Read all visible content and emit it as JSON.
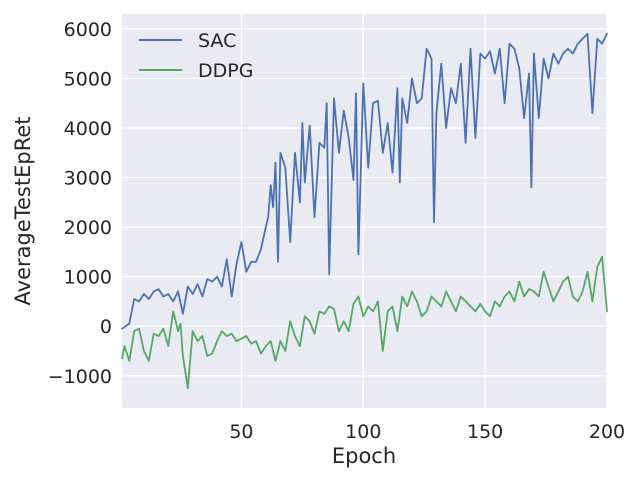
{
  "chart_data": {
    "type": "line",
    "title": "",
    "xlabel": "Epoch",
    "ylabel": "AverageTestEpRet",
    "xlim": [
      1,
      200
    ],
    "ylim": [
      -1650,
      6300
    ],
    "xticks": [
      50,
      100,
      150,
      200
    ],
    "xtick_labels": [
      "50",
      "100",
      "150",
      "200"
    ],
    "yticks": [
      -1000,
      0,
      1000,
      2000,
      3000,
      4000,
      5000,
      6000
    ],
    "ytick_labels": [
      "−1000",
      "0",
      "1000",
      "2000",
      "3000",
      "4000",
      "5000",
      "6000"
    ],
    "grid": true,
    "legend_position": "top-left",
    "background": "#EAEAF2",
    "series": [
      {
        "name": "SAC",
        "color": "#4C72B0",
        "x": [
          1,
          4,
          6,
          8,
          10,
          12,
          14,
          16,
          18,
          20,
          22,
          24,
          26,
          28,
          30,
          32,
          34,
          36,
          38,
          40,
          42,
          44,
          46,
          48,
          50,
          52,
          54,
          56,
          58,
          60,
          61,
          62,
          63,
          64,
          65,
          66,
          68,
          70,
          72,
          74,
          75,
          76,
          78,
          80,
          82,
          84,
          85,
          86,
          88,
          90,
          92,
          94,
          96,
          97,
          98,
          100,
          102,
          104,
          106,
          108,
          110,
          112,
          114,
          115,
          116,
          118,
          120,
          122,
          124,
          126,
          128,
          129,
          130,
          132,
          134,
          136,
          138,
          140,
          142,
          144,
          146,
          148,
          150,
          152,
          154,
          156,
          158,
          160,
          162,
          164,
          166,
          168,
          169,
          170,
          172,
          174,
          176,
          178,
          180,
          182,
          184,
          186,
          188,
          190,
          192,
          194,
          196,
          198,
          200
        ],
        "values": [
          -50,
          50,
          550,
          500,
          650,
          550,
          700,
          750,
          600,
          650,
          500,
          700,
          250,
          800,
          650,
          850,
          600,
          950,
          900,
          1000,
          800,
          1350,
          600,
          1250,
          1700,
          1100,
          1300,
          1300,
          1550,
          2000,
          2200,
          2850,
          2400,
          3300,
          1300,
          3500,
          3200,
          1700,
          3500,
          2500,
          4100,
          2900,
          4050,
          2200,
          3700,
          3600,
          4500,
          1050,
          4600,
          3500,
          4350,
          3800,
          2950,
          4700,
          1450,
          4900,
          3200,
          4500,
          4550,
          3500,
          4100,
          3100,
          4800,
          2900,
          4600,
          4100,
          5000,
          4500,
          4600,
          5600,
          5400,
          2100,
          4300,
          5300,
          4000,
          4800,
          4500,
          5300,
          3700,
          5600,
          3800,
          5500,
          5400,
          5550,
          5100,
          5600,
          4500,
          5700,
          5600,
          5200,
          4200,
          5100,
          2800,
          5500,
          4200,
          5400,
          5000,
          5500,
          5300,
          5500,
          5600,
          5500,
          5700,
          5800,
          5900,
          4300,
          5800,
          5700,
          5900
        ]
      },
      {
        "name": "DDPG",
        "color": "#55A868",
        "x": [
          1,
          2,
          3,
          4,
          6,
          8,
          10,
          12,
          14,
          16,
          18,
          20,
          22,
          24,
          25,
          26,
          28,
          30,
          32,
          34,
          36,
          38,
          40,
          42,
          44,
          46,
          48,
          50,
          52,
          54,
          56,
          58,
          60,
          62,
          64,
          66,
          68,
          70,
          72,
          74,
          76,
          78,
          80,
          82,
          84,
          86,
          88,
          90,
          92,
          94,
          96,
          98,
          100,
          102,
          104,
          106,
          108,
          110,
          112,
          114,
          116,
          118,
          120,
          122,
          124,
          126,
          128,
          130,
          132,
          134,
          136,
          138,
          140,
          142,
          144,
          146,
          148,
          150,
          152,
          154,
          156,
          158,
          160,
          162,
          164,
          166,
          168,
          170,
          172,
          174,
          176,
          178,
          180,
          182,
          184,
          186,
          188,
          190,
          192,
          194,
          196,
          198,
          200
        ],
        "values": [
          -650,
          -400,
          -550,
          -700,
          -100,
          -50,
          -500,
          -700,
          -150,
          -200,
          -50,
          -400,
          300,
          -100,
          50,
          -600,
          -1250,
          -100,
          -300,
          -200,
          -600,
          -550,
          -300,
          -100,
          -200,
          -150,
          -300,
          -250,
          -200,
          -350,
          -300,
          -550,
          -400,
          -300,
          -700,
          -300,
          -500,
          100,
          -200,
          -400,
          200,
          100,
          -150,
          300,
          250,
          400,
          350,
          -100,
          100,
          -100,
          450,
          600,
          200,
          400,
          300,
          500,
          -500,
          300,
          400,
          -100,
          600,
          400,
          700,
          500,
          200,
          300,
          600,
          500,
          400,
          700,
          500,
          300,
          600,
          500,
          400,
          300,
          450,
          300,
          200,
          500,
          400,
          600,
          700,
          500,
          900,
          600,
          750,
          700,
          600,
          1100,
          800,
          500,
          700,
          900,
          1000,
          600,
          500,
          700,
          1100,
          500,
          1200,
          1400,
          300
        ]
      }
    ]
  }
}
